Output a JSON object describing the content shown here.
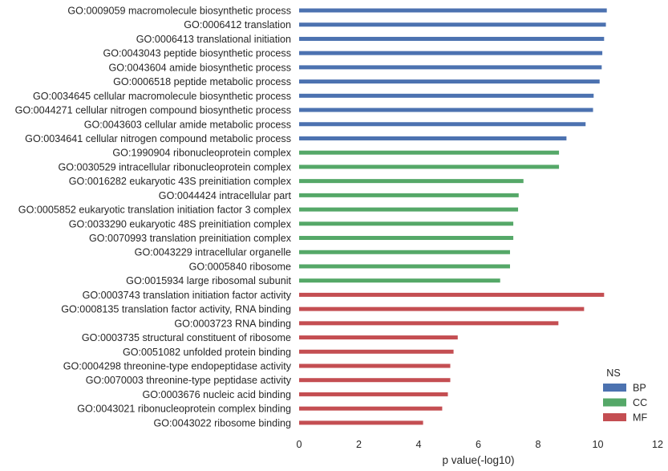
{
  "chart_data": {
    "type": "bar",
    "orientation": "horizontal",
    "title": "",
    "xlabel": "p value(-log10)",
    "ylabel": "",
    "xlim": [
      0,
      12
    ],
    "xticks": [
      "0",
      "2",
      "4",
      "6",
      "8",
      "10",
      "12"
    ],
    "grid": false,
    "legend": {
      "title": "NS",
      "placement": "bottom-right",
      "entries": [
        {
          "name": "BP",
          "color": "#4c72b0"
        },
        {
          "name": "CC",
          "color": "#55a868"
        },
        {
          "name": "MF",
          "color": "#c44e52"
        }
      ]
    },
    "categories": [
      "GO:0009059 macromolecule biosynthetic process",
      "GO:0006412 translation",
      "GO:0006413 translational initiation",
      "GO:0043043 peptide biosynthetic process",
      "GO:0043604 amide biosynthetic process",
      "GO:0006518 peptide metabolic process",
      "GO:0034645 cellular macromolecule biosynthetic process",
      "GO:0044271 cellular nitrogen compound biosynthetic process",
      "GO:0043603 cellular amide metabolic process",
      "GO:0034641 cellular nitrogen compound metabolic process",
      "GO:1990904 ribonucleoprotein complex",
      "GO:0030529 intracellular ribonucleoprotein complex",
      "GO:0016282 eukaryotic 43S preinitiation complex",
      "GO:0044424 intracellular part",
      "GO:0005852 eukaryotic translation initiation factor 3 complex",
      "GO:0033290 eukaryotic 48S preinitiation complex",
      "GO:0070993 translation preinitiation complex",
      "GO:0043229 intracellular organelle",
      "GO:0005840 ribosome",
      "GO:0015934 large ribosomal subunit",
      "GO:0003743 translation initiation factor activity",
      "GO:0008135 translation factor activity, RNA binding",
      "GO:0003723 RNA binding",
      "GO:0003735 structural constituent of ribosome",
      "GO:0051082 unfolded protein binding",
      "GO:0004298 threonine-type endopeptidase activity",
      "GO:0070003 threonine-type peptidase activity",
      "GO:0003676 nucleic acid binding",
      "GO:0043021 ribonucleoprotein complex binding",
      "GO:0043022 ribosome binding"
    ],
    "series": [
      {
        "name": "BP",
        "color": "#4c72b0",
        "values": [
          10.3,
          10.27,
          10.21,
          10.15,
          10.13,
          10.06,
          9.86,
          9.84,
          9.59,
          8.95,
          null,
          null,
          null,
          null,
          null,
          null,
          null,
          null,
          null,
          null,
          null,
          null,
          null,
          null,
          null,
          null,
          null,
          null,
          null,
          null
        ]
      },
      {
        "name": "CC",
        "color": "#55a868",
        "values": [
          null,
          null,
          null,
          null,
          null,
          null,
          null,
          null,
          null,
          null,
          8.7,
          8.7,
          7.51,
          7.35,
          7.33,
          7.17,
          7.17,
          7.06,
          7.06,
          6.73,
          null,
          null,
          null,
          null,
          null,
          null,
          null,
          null,
          null,
          null
        ]
      },
      {
        "name": "MF",
        "color": "#c44e52",
        "values": [
          null,
          null,
          null,
          null,
          null,
          null,
          null,
          null,
          null,
          null,
          null,
          null,
          null,
          null,
          null,
          null,
          null,
          null,
          null,
          null,
          10.21,
          9.54,
          8.68,
          5.31,
          5.17,
          5.06,
          5.06,
          4.98,
          4.79,
          4.15
        ]
      }
    ]
  }
}
